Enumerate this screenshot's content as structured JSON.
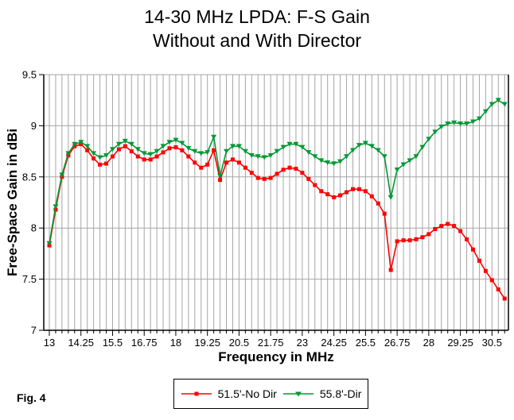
{
  "title": {
    "line1": "14-30 MHz LPDA: F-S Gain",
    "line2": "Without and With Director"
  },
  "figure_label": "Fig. 4",
  "chart_data": {
    "type": "line",
    "title": "14-30 MHz LPDA: F-S Gain Without and With Director",
    "xlabel": "Frequency in MHz",
    "ylabel": "Free-Space Gain in dBi",
    "xlim": [
      12.78,
      31.15
    ],
    "ylim": [
      7,
      9.5
    ],
    "x_major_ticks": [
      13,
      14.25,
      15.5,
      16.75,
      18,
      19.25,
      20.5,
      21.75,
      23,
      24.25,
      25.5,
      26.75,
      28,
      29.25,
      30.5
    ],
    "x_minor_step": 0.25,
    "x_minor_range": [
      13,
      31
    ],
    "y_major_ticks": [
      7,
      7.5,
      8,
      8.5,
      9,
      9.5
    ],
    "grid": true,
    "legend_position": "bottom-center",
    "colors": {
      "grid": "#a6a6a6",
      "axis": "#000000",
      "background": "#ffffff"
    },
    "x": [
      13,
      13.25,
      13.5,
      13.75,
      14,
      14.25,
      14.5,
      14.75,
      15,
      15.25,
      15.5,
      15.75,
      16,
      16.25,
      16.5,
      16.75,
      17,
      17.25,
      17.5,
      17.75,
      18,
      18.25,
      18.5,
      18.75,
      19,
      19.25,
      19.5,
      19.75,
      20,
      20.25,
      20.5,
      20.75,
      21,
      21.25,
      21.5,
      21.75,
      22,
      22.25,
      22.5,
      22.75,
      23,
      23.25,
      23.5,
      23.75,
      24,
      24.25,
      24.5,
      24.75,
      25,
      25.25,
      25.5,
      25.75,
      26,
      26.25,
      26.5,
      26.75,
      27,
      27.25,
      27.5,
      27.75,
      28,
      28.25,
      28.5,
      28.75,
      29,
      29.25,
      29.5,
      29.75,
      30,
      30.25,
      30.5,
      30.75,
      31
    ],
    "series": [
      {
        "name": "51.5'-No Dir",
        "color": "#ff0000",
        "marker": "square",
        "values": [
          7.83,
          8.18,
          8.5,
          8.71,
          8.8,
          8.82,
          8.76,
          8.68,
          8.62,
          8.63,
          8.7,
          8.77,
          8.8,
          8.75,
          8.7,
          8.67,
          8.67,
          8.7,
          8.74,
          8.78,
          8.79,
          8.76,
          8.7,
          8.64,
          8.59,
          8.62,
          8.76,
          8.47,
          8.64,
          8.67,
          8.64,
          8.59,
          8.54,
          8.49,
          8.48,
          8.49,
          8.53,
          8.57,
          8.59,
          8.58,
          8.54,
          8.48,
          8.42,
          8.36,
          8.33,
          8.3,
          8.32,
          8.35,
          8.38,
          8.38,
          8.36,
          8.31,
          8.24,
          8.14,
          7.59,
          7.87,
          7.88,
          7.88,
          7.89,
          7.91,
          7.94,
          7.99,
          8.02,
          8.04,
          8.02,
          7.97,
          7.89,
          7.79,
          7.68,
          7.58,
          7.49,
          7.4,
          7.31
        ]
      },
      {
        "name": "55.8'-Dir",
        "color": "#009933",
        "marker": "triangle-down",
        "values": [
          7.85,
          8.21,
          8.52,
          8.73,
          8.82,
          8.84,
          8.8,
          8.73,
          8.69,
          8.71,
          8.77,
          8.82,
          8.85,
          8.82,
          8.77,
          8.73,
          8.72,
          8.75,
          8.8,
          8.84,
          8.86,
          8.83,
          8.78,
          8.75,
          8.73,
          8.74,
          8.89,
          8.51,
          8.75,
          8.8,
          8.8,
          8.75,
          8.71,
          8.7,
          8.69,
          8.71,
          8.75,
          8.79,
          8.82,
          8.82,
          8.79,
          8.74,
          8.7,
          8.66,
          8.64,
          8.63,
          8.65,
          8.7,
          8.76,
          8.81,
          8.83,
          8.8,
          8.76,
          8.7,
          8.3,
          8.57,
          8.62,
          8.66,
          8.7,
          8.79,
          8.87,
          8.94,
          8.99,
          9.02,
          9.03,
          9.02,
          9.02,
          9.04,
          9.07,
          9.14,
          9.21,
          9.25,
          9.21
        ]
      }
    ]
  }
}
